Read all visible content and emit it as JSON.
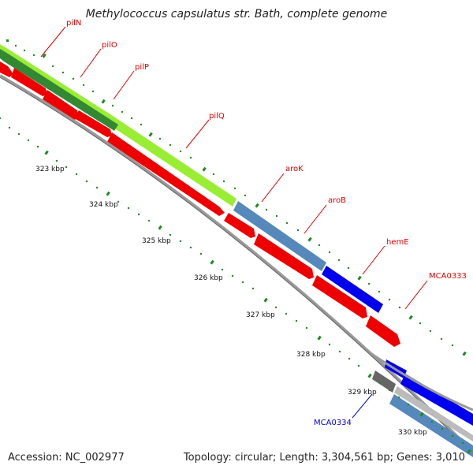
{
  "title": "Methylococcus capsulatus str. Bath, complete genome",
  "footer": {
    "accession": "Accession: NC_002977",
    "summary": "Topology: circular; Length: 3,304,561 bp; Genes: 3,010"
  },
  "colors": {
    "label_red": "#e00000",
    "label_blue": "#0000cc",
    "lime": "#99ee33",
    "dark_green": "#338833",
    "steel_blue": "#5588bb",
    "blue": "#0000ee",
    "red": "#ee0000",
    "gray_line": "#999999",
    "tick_green": "#228822"
  },
  "gene_labels": [
    {
      "name": "pilN",
      "color": "red"
    },
    {
      "name": "pilO",
      "color": "red"
    },
    {
      "name": "pilP",
      "color": "red"
    },
    {
      "name": "pilQ",
      "color": "red"
    },
    {
      "name": "aroK",
      "color": "red"
    },
    {
      "name": "aroB",
      "color": "red"
    },
    {
      "name": "hemE",
      "color": "red"
    },
    {
      "name": "MCA0333",
      "color": "red"
    },
    {
      "name": "MCA0334",
      "color": "blue"
    }
  ],
  "kbp_labels": [
    "323 kbp",
    "324 kbp",
    "325 kbp",
    "326 kbp",
    "327 kbp",
    "328 kbp",
    "329 kbp",
    "330 kbp"
  ]
}
